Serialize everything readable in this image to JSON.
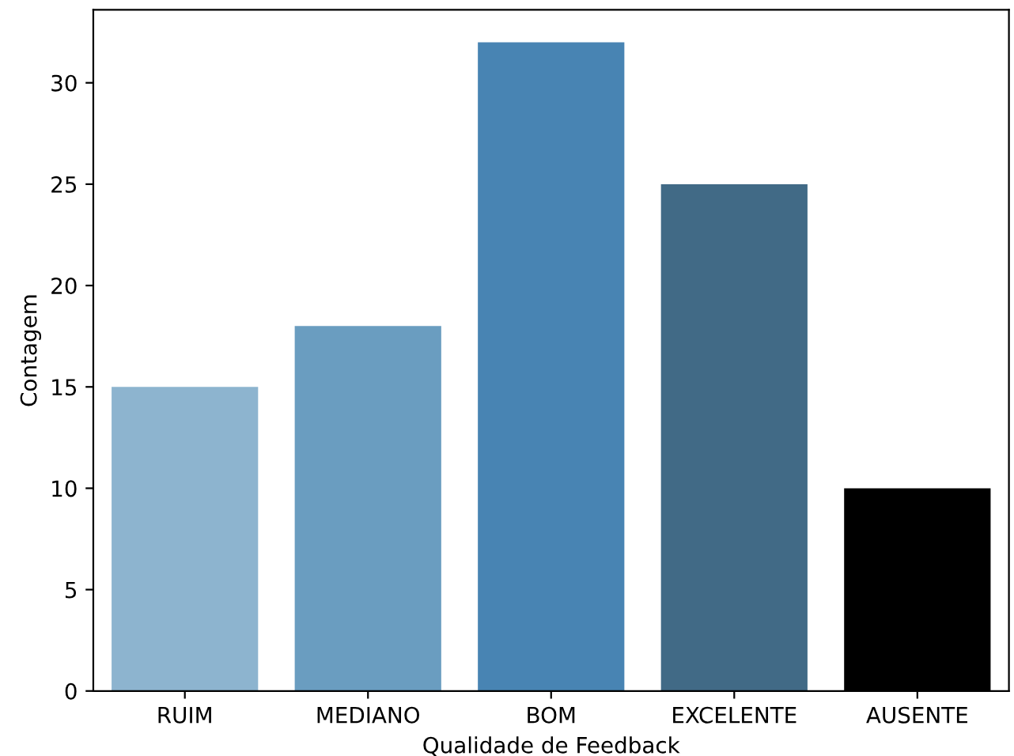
{
  "chart_data": {
    "type": "bar",
    "xlabel": "Qualidade de Feedback",
    "ylabel": "Contagem",
    "categories": [
      "RUIM",
      "MEDIANO",
      "BOM",
      "EXCELENTE",
      "AUSENTE"
    ],
    "values": [
      15,
      18,
      32,
      25,
      10
    ],
    "colors": [
      "#8db4cf",
      "#6a9dc0",
      "#4884b3",
      "#416a86",
      "#000000"
    ],
    "ylim": [
      0,
      33.6
    ],
    "yticks": [
      0,
      5,
      10,
      15,
      20,
      25,
      30
    ],
    "grid": false,
    "legend": false
  }
}
